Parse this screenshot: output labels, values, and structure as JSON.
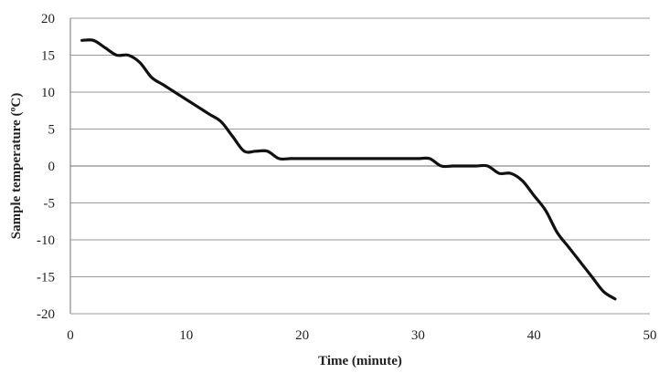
{
  "chart_data": {
    "type": "line",
    "title": "",
    "xlabel": "Time (minute)",
    "ylabel": "Sample temperature (ºC)",
    "xlim": [
      0,
      50
    ],
    "ylim": [
      -20,
      20
    ],
    "x_ticks": [
      0,
      10,
      20,
      30,
      40,
      50
    ],
    "y_ticks": [
      -20,
      -15,
      -10,
      -5,
      0,
      5,
      10,
      15,
      20
    ],
    "grid": "horizontal",
    "legend": "none",
    "colors": {
      "line": "#111111",
      "grid": "#9a9a9a",
      "axis": "#8a8a8a",
      "text": "#222222"
    },
    "series": [
      {
        "x": [
          1,
          2,
          3,
          4,
          5,
          6,
          7,
          8,
          9,
          10,
          11,
          12,
          13,
          14,
          15,
          16,
          17,
          18,
          19,
          20,
          21,
          22,
          23,
          24,
          25,
          26,
          27,
          28,
          29,
          30,
          31,
          32,
          33,
          34,
          35,
          36,
          37,
          38,
          39,
          40,
          41,
          42,
          43,
          44,
          45,
          46,
          47
        ],
        "y": [
          17,
          17,
          16,
          15,
          15,
          14,
          12,
          11,
          10,
          9,
          8,
          7,
          6,
          4,
          2,
          2,
          2,
          1,
          1,
          1,
          1,
          1,
          1,
          1,
          1,
          1,
          1,
          1,
          1,
          1,
          1,
          0,
          0,
          0,
          0,
          0,
          -1,
          -1,
          -2,
          -4,
          -6,
          -9,
          -11,
          -13,
          -15,
          -17,
          -18
        ]
      }
    ]
  }
}
